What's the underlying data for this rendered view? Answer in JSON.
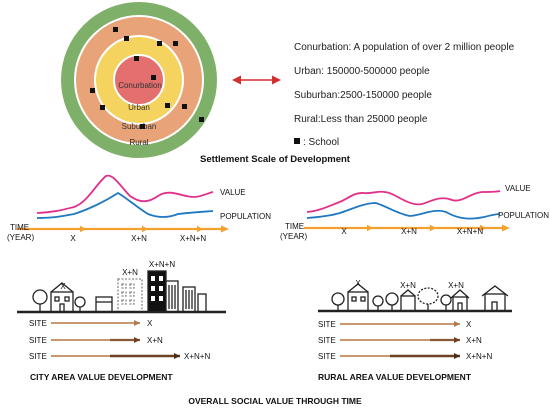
{
  "settlement": {
    "rings": {
      "conurbation": "Conurbation",
      "urban": "Urban",
      "suburban": "Suburban",
      "rural": "Rural"
    },
    "legend": [
      "Conurbation: A population of over 2 million people",
      "Urban: 150000-500000 people",
      "Suburban:2500-150000 people",
      "Rural:Less than 25000 people"
    ],
    "school_legend": ": School",
    "caption": "Settlement Scale of Development"
  },
  "city_graph": {
    "value_label": "VALUE",
    "population_label": "POPULATION",
    "time_label_1": "TIME",
    "time_label_2": "(YEAR)",
    "ticks": [
      "X",
      "X+N",
      "X+N+N"
    ]
  },
  "rural_graph": {
    "value_label": "VALUE",
    "population_label": "POPULATION",
    "time_label_1": "TIME",
    "time_label_2": "(YEAR)",
    "ticks": [
      "X",
      "X+N",
      "X+N+N"
    ]
  },
  "city_scene": {
    "building_labels": [
      "X",
      "X+N",
      "X+N+N"
    ],
    "site_label": "SITE",
    "site_ends": [
      "X",
      "X+N",
      "X+N+N"
    ],
    "caption": "CITY AREA VALUE DEVELOPMENT"
  },
  "rural_scene": {
    "building_labels": [
      "X",
      "X+N",
      "X+N"
    ],
    "site_label": "SITE",
    "site_ends": [
      "X",
      "X+N",
      "X+N+N"
    ],
    "caption": "RURAL AREA VALUE DEVELOPMENT"
  },
  "footer": "OVERALL SOCIAL VALUE THROUGH TIME",
  "colors": {
    "rural": "#7fb069",
    "suburban": "#e8a378",
    "urban": "#f4d35e",
    "conurbation": "#e36f6f",
    "value_line": "#e0308a",
    "population_line": "#1f78c1",
    "time_arrow": "#f2a02e",
    "legend_arrow": "#d32f2f"
  }
}
